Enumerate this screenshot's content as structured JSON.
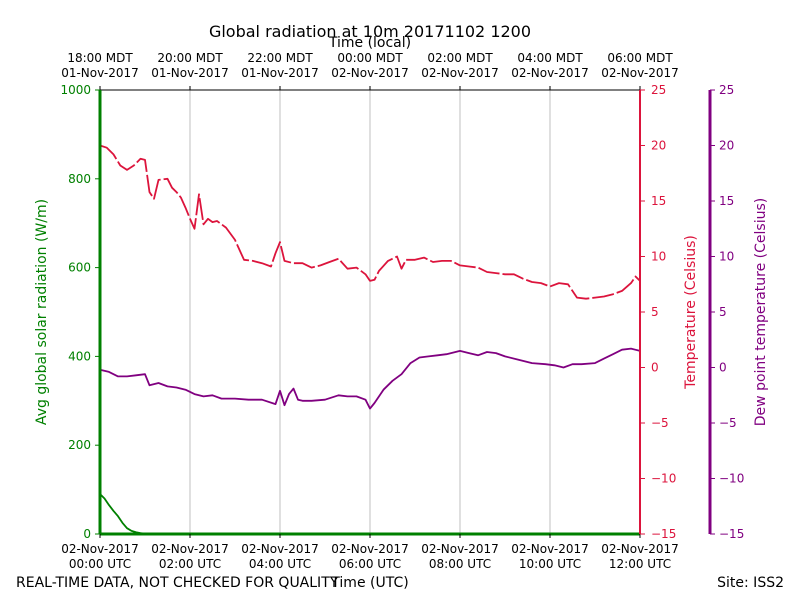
{
  "chart_data": {
    "type": "line",
    "title": "Global radiation at 10m 20171102 1200",
    "top_axis_title": "Time (local)",
    "bottom_axis_title": "Time (UTC)",
    "footer_left": "REAL-TIME DATA, NOT CHECKED FOR QUALITY",
    "footer_right": "Site: ISS2",
    "x_range_hours": [
      0,
      12
    ],
    "bottom_ticks": [
      {
        "h": 0,
        "line1": "02-Nov-2017",
        "line2": "00:00 UTC"
      },
      {
        "h": 2,
        "line1": "02-Nov-2017",
        "line2": "02:00 UTC"
      },
      {
        "h": 4,
        "line1": "02-Nov-2017",
        "line2": "04:00 UTC"
      },
      {
        "h": 6,
        "line1": "02-Nov-2017",
        "line2": "06:00 UTC"
      },
      {
        "h": 8,
        "line1": "02-Nov-2017",
        "line2": "08:00 UTC"
      },
      {
        "h": 10,
        "line1": "02-Nov-2017",
        "line2": "10:00 UTC"
      },
      {
        "h": 12,
        "line1": "02-Nov-2017",
        "line2": "12:00 UTC"
      }
    ],
    "top_ticks": [
      {
        "h": 0,
        "line1": "18:00 MDT",
        "line2": "01-Nov-2017"
      },
      {
        "h": 2,
        "line1": "20:00 MDT",
        "line2": "01-Nov-2017"
      },
      {
        "h": 4,
        "line1": "22:00 MDT",
        "line2": "01-Nov-2017"
      },
      {
        "h": 6,
        "line1": "00:00 MDT",
        "line2": "02-Nov-2017"
      },
      {
        "h": 8,
        "line1": "02:00 MDT",
        "line2": "02-Nov-2017"
      },
      {
        "h": 10,
        "line1": "04:00 MDT",
        "line2": "02-Nov-2017"
      },
      {
        "h": 12,
        "line1": "06:00 MDT",
        "line2": "02-Nov-2017"
      }
    ],
    "vertical_gridlines_hours": [
      2,
      4,
      6,
      8,
      10
    ],
    "axes": {
      "radiation": {
        "label": "Avg global solar radiation (W/m)",
        "color": "#008000",
        "ylim": [
          0,
          1000
        ],
        "ticks": [
          0,
          200,
          400,
          600,
          800,
          1000
        ]
      },
      "temperature": {
        "label": "Temperature (Celsius)",
        "color": "#dc143c",
        "ylim": [
          -15,
          25
        ],
        "ticks": [
          -15,
          -10,
          -5,
          0,
          5,
          10,
          15,
          20,
          25
        ]
      },
      "dewpoint": {
        "label": "Dew point temperature (Celsius)",
        "color": "#800080",
        "ylim": [
          -15,
          25
        ],
        "ticks": [
          -15,
          -10,
          -5,
          0,
          5,
          10,
          15,
          20,
          25
        ]
      }
    },
    "series": [
      {
        "name": "Avg global solar radiation",
        "axis": "radiation",
        "dashed": false,
        "x": [
          0,
          0.1,
          0.2,
          0.3,
          0.4,
          0.5,
          0.6,
          0.7,
          0.8,
          0.9,
          1.0,
          1.2,
          1.5,
          2,
          4,
          6,
          8,
          10,
          12
        ],
        "y": [
          90,
          80,
          65,
          52,
          40,
          25,
          13,
          7,
          4,
          2,
          1,
          0,
          0,
          0,
          0,
          0,
          0,
          0,
          0
        ]
      },
      {
        "name": "Temperature",
        "axis": "temperature",
        "dashed": true,
        "x": [
          0,
          0.15,
          0.3,
          0.45,
          0.6,
          0.75,
          0.9,
          1.0,
          1.1,
          1.2,
          1.3,
          1.5,
          1.6,
          1.7,
          1.8,
          1.9,
          2.0,
          2.1,
          2.2,
          2.3,
          2.4,
          2.5,
          2.6,
          2.8,
          3.0,
          3.2,
          3.4,
          3.6,
          3.8,
          3.9,
          4.0,
          4.1,
          4.3,
          4.5,
          4.7,
          4.9,
          5.1,
          5.3,
          5.5,
          5.7,
          5.9,
          6.0,
          6.1,
          6.2,
          6.4,
          6.6,
          6.7,
          6.8,
          7.0,
          7.2,
          7.4,
          7.6,
          7.8,
          8.0,
          8.2,
          8.4,
          8.6,
          8.8,
          9.0,
          9.2,
          9.4,
          9.6,
          9.8,
          10.0,
          10.2,
          10.4,
          10.6,
          10.8,
          11.0,
          11.2,
          11.4,
          11.6,
          11.8,
          11.9,
          12.0
        ],
        "y": [
          20.0,
          19.8,
          19.2,
          18.2,
          17.8,
          18.2,
          18.8,
          18.7,
          15.8,
          15.2,
          16.9,
          17.0,
          16.2,
          15.8,
          15.3,
          14.4,
          13.4,
          12.5,
          15.6,
          12.9,
          13.4,
          13.1,
          13.2,
          12.6,
          11.5,
          9.7,
          9.6,
          9.4,
          9.1,
          10.3,
          11.3,
          9.6,
          9.4,
          9.4,
          9.0,
          9.2,
          9.5,
          9.8,
          8.9,
          9.0,
          8.4,
          7.8,
          7.9,
          8.7,
          9.6,
          10.0,
          8.9,
          9.7,
          9.7,
          9.9,
          9.5,
          9.6,
          9.6,
          9.2,
          9.1,
          9.0,
          8.6,
          8.5,
          8.4,
          8.4,
          8.0,
          7.7,
          7.6,
          7.3,
          7.6,
          7.5,
          6.3,
          6.2,
          6.3,
          6.4,
          6.6,
          6.9,
          7.6,
          8.2,
          7.8
        ]
      },
      {
        "name": "Dew point temperature",
        "axis": "dewpoint",
        "dashed": false,
        "x": [
          0,
          0.2,
          0.4,
          0.6,
          0.8,
          1.0,
          1.1,
          1.3,
          1.5,
          1.7,
          1.9,
          2.1,
          2.3,
          2.5,
          2.7,
          3.0,
          3.3,
          3.6,
          3.9,
          4.0,
          4.1,
          4.2,
          4.3,
          4.4,
          4.5,
          4.7,
          5.0,
          5.3,
          5.5,
          5.7,
          5.9,
          6.0,
          6.1,
          6.2,
          6.3,
          6.5,
          6.7,
          6.9,
          7.1,
          7.3,
          7.5,
          7.7,
          7.9,
          8.0,
          8.2,
          8.4,
          8.6,
          8.8,
          9.0,
          9.3,
          9.6,
          9.9,
          10.1,
          10.3,
          10.5,
          10.7,
          11.0,
          11.2,
          11.4,
          11.6,
          11.8,
          12.0
        ],
        "y": [
          -0.2,
          -0.4,
          -0.8,
          -0.8,
          -0.7,
          -0.6,
          -1.6,
          -1.4,
          -1.7,
          -1.8,
          -2.0,
          -2.4,
          -2.6,
          -2.5,
          -2.8,
          -2.8,
          -2.9,
          -2.9,
          -3.3,
          -2.1,
          -3.4,
          -2.4,
          -1.9,
          -2.9,
          -3.0,
          -3.0,
          -2.9,
          -2.5,
          -2.6,
          -2.6,
          -2.9,
          -3.7,
          -3.2,
          -2.6,
          -2.0,
          -1.2,
          -0.6,
          0.4,
          0.9,
          1.0,
          1.1,
          1.2,
          1.4,
          1.5,
          1.3,
          1.1,
          1.4,
          1.3,
          1.0,
          0.7,
          0.4,
          0.3,
          0.2,
          0.0,
          0.3,
          0.3,
          0.4,
          0.8,
          1.2,
          1.6,
          1.7,
          1.5
        ]
      }
    ]
  }
}
